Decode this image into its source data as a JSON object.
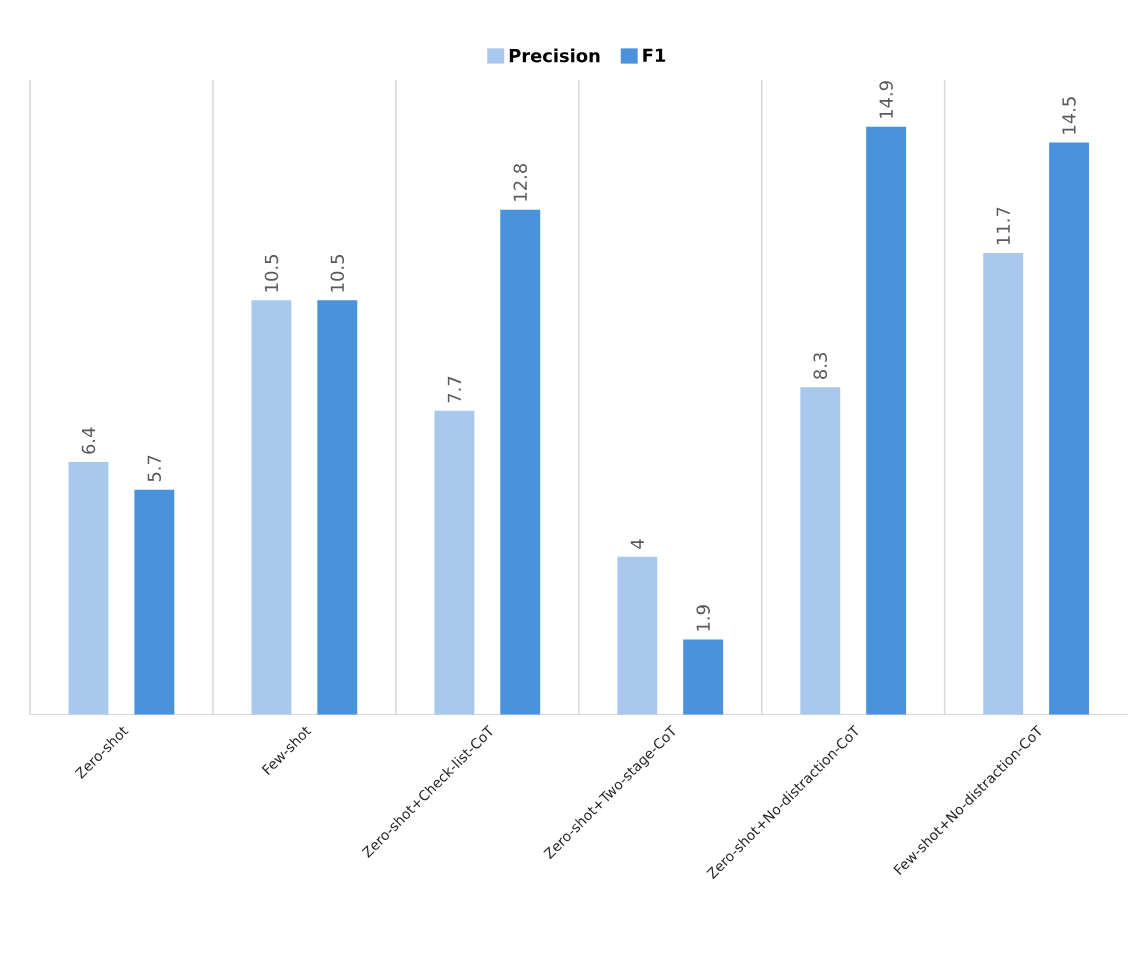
{
  "chart_data": {
    "type": "bar",
    "categories": [
      "Zero-shot",
      "Few-shot",
      "Zero-shot+Check-list-CoT",
      "Zero-shot+Two-stage-CoT",
      "Zero-shot+No-distraction-CoT",
      "Few-shot+No-distraction-CoT"
    ],
    "series": [
      {
        "name": "Precision",
        "color": "#a9c9ec",
        "values": [
          6.4,
          10.5,
          7.7,
          4,
          8.3,
          11.7
        ]
      },
      {
        "name": "F1",
        "color": "#4a92dc",
        "values": [
          5.7,
          10.5,
          12.8,
          1.9,
          14.9,
          14.5
        ]
      }
    ],
    "data_labels": true,
    "grid": "x",
    "legend": "top"
  }
}
